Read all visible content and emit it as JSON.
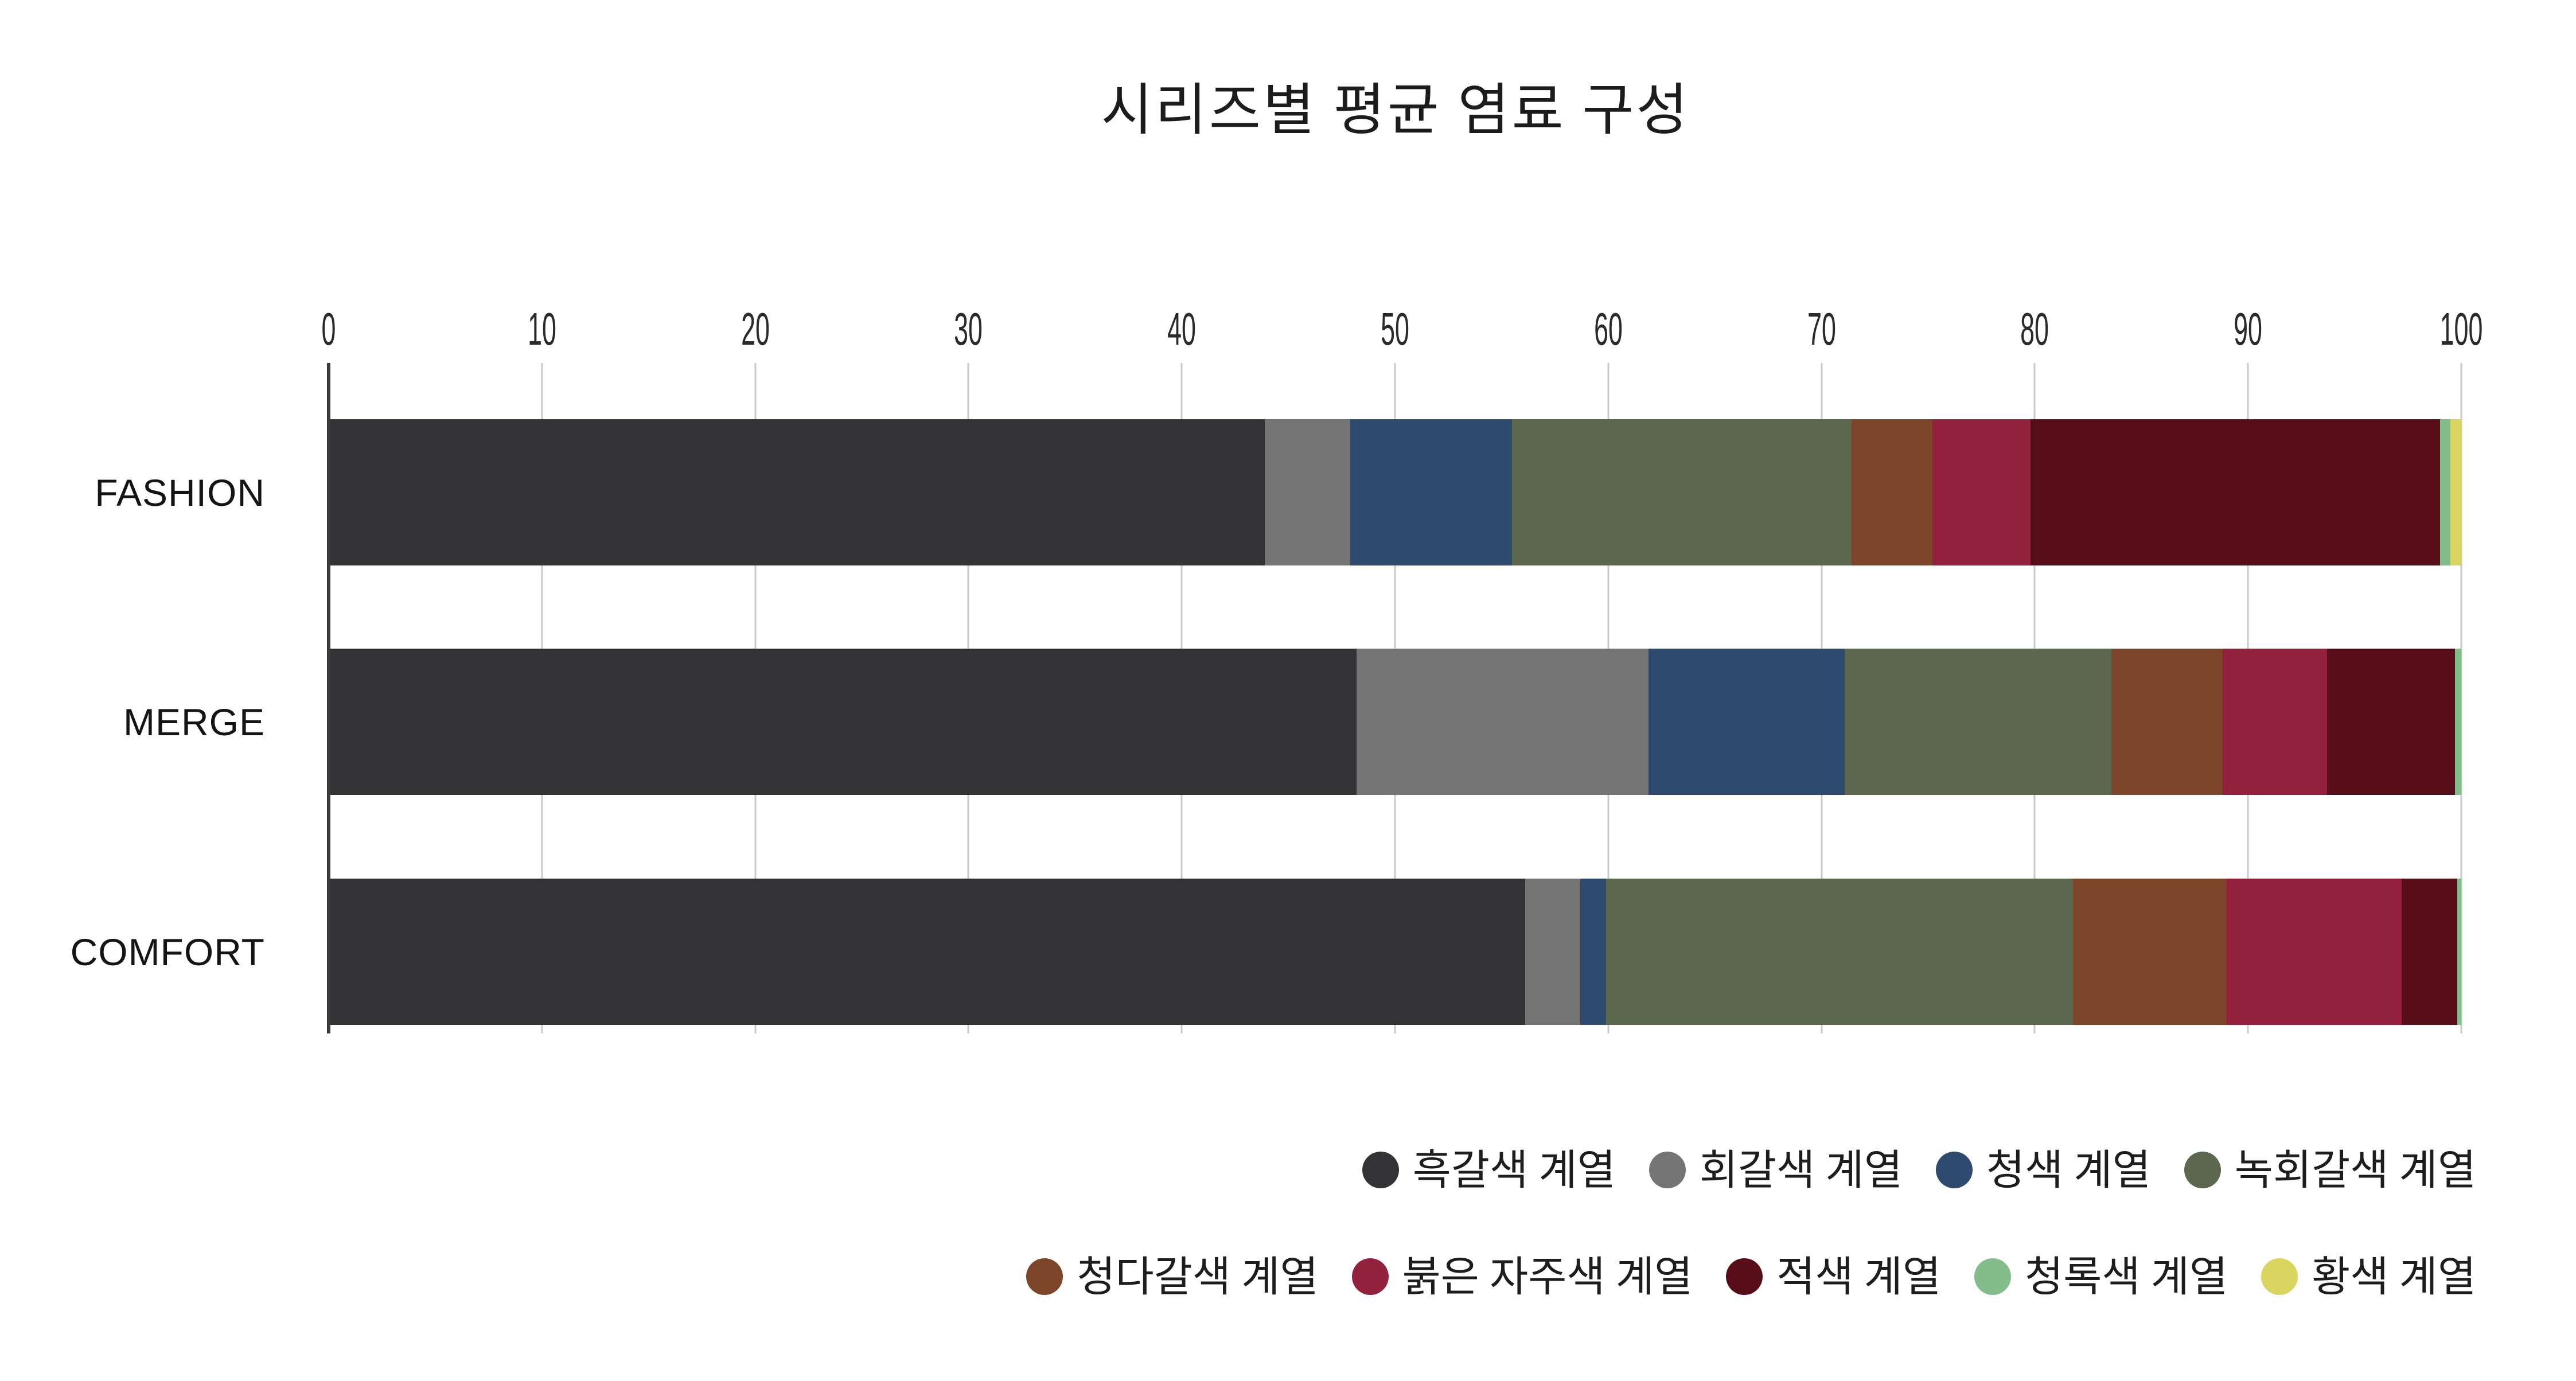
{
  "title": "시리즈별 평균 염료 구성",
  "chart_data": {
    "type": "bar",
    "orientation": "horizontal",
    "stacked": true,
    "title": "시리즈별 평균 염료 구성",
    "categories": [
      "FASHION",
      "MERGE",
      "COMFORT"
    ],
    "xlabel": "",
    "ylabel": "",
    "xlim": [
      0,
      100
    ],
    "x_ticks": [
      0,
      10,
      20,
      30,
      40,
      50,
      60,
      70,
      80,
      90,
      100
    ],
    "grid": true,
    "axis_position": "top",
    "legend_position": "bottom-right-two-rows",
    "series": [
      {
        "name": "흑갈색 계열",
        "color": "#333234",
        "values": [
          43.9,
          48.2,
          56.1
        ]
      },
      {
        "name": "회갈색 계열",
        "color": "#757474",
        "values": [
          4.0,
          13.7,
          2.6
        ]
      },
      {
        "name": "청색 계열",
        "color": "#2e4a6e",
        "values": [
          7.6,
          9.2,
          1.2
        ]
      },
      {
        "name": "녹회갈색 계열",
        "color": "#5b684d",
        "values": [
          15.9,
          12.5,
          21.9
        ]
      },
      {
        "name": "청다갈색 계열",
        "color": "#7c4529",
        "values": [
          3.8,
          5.2,
          7.2
        ]
      },
      {
        "name": "붉은 자주색 계열",
        "color": "#93213d",
        "values": [
          4.6,
          4.9,
          8.2
        ]
      },
      {
        "name": "적색 계열",
        "color": "#570e18",
        "values": [
          19.2,
          6.0,
          2.6
        ]
      },
      {
        "name": "청록색 계열",
        "color": "#84bd8c",
        "values": [
          0.5,
          0.3,
          0.2
        ]
      },
      {
        "name": "황색 계열",
        "color": "#dad55e",
        "values": [
          0.5,
          0,
          0
        ]
      }
    ],
    "legend_rows": [
      [
        0,
        1,
        2,
        3
      ],
      [
        4,
        5,
        6,
        7,
        8
      ]
    ],
    "colors": {
      "background": "#ffffff",
      "gridline": "#c9c9c9",
      "zero_axis": "#3a393b",
      "text": "#1c1c1c"
    }
  }
}
